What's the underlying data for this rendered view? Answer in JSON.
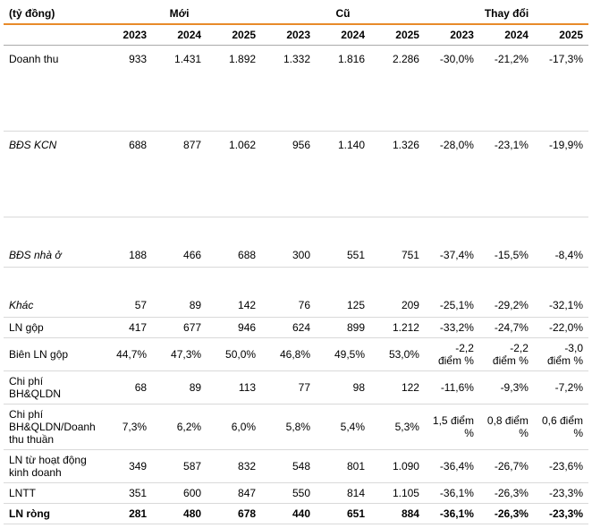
{
  "unit_label": "(tỷ đồng)",
  "groups": [
    "Mới",
    "Cũ",
    "Thay đổi"
  ],
  "years": [
    "2023",
    "2024",
    "2025",
    "2023",
    "2024",
    "2025",
    "2023",
    "2024",
    "2025"
  ],
  "rows": [
    {
      "label": "Doanh thu",
      "values": [
        "933",
        "1.431",
        "1.892",
        "1.332",
        "1.816",
        "2.286",
        "-30,0%",
        "-21,2%",
        "-17,3%"
      ],
      "tall": true
    },
    {
      "label": "BĐS KCN",
      "italic": true,
      "values": [
        "688",
        "877",
        "1.062",
        "956",
        "1.140",
        "1.326",
        "-28,0%",
        "-23,1%",
        "-19,9%"
      ],
      "tall": true
    },
    {
      "label": "BĐS nhà ở",
      "italic": true,
      "values": [
        "188",
        "466",
        "688",
        "300",
        "551",
        "751",
        "-37,4%",
        "-15,5%",
        "-8,4%"
      ],
      "medtall": true
    },
    {
      "label": "Khác",
      "italic": true,
      "values": [
        "57",
        "89",
        "142",
        "76",
        "125",
        "209",
        "-25,1%",
        "-29,2%",
        "-32,1%"
      ],
      "medtall": true
    },
    {
      "label": "LN gộp",
      "values": [
        "417",
        "677",
        "946",
        "624",
        "899",
        "1.212",
        "-33,2%",
        "-24,7%",
        "-22,0%"
      ]
    },
    {
      "label": "Biên LN gộp",
      "values": [
        "44,7%",
        "47,3%",
        "50,0%",
        "46,8%",
        "49,5%",
        "53,0%",
        "-2,2 điểm %",
        "-2,2 điểm %",
        "-3,0 điểm %"
      ]
    },
    {
      "label": "Chi phí BH&QLDN",
      "values": [
        "68",
        "89",
        "113",
        "77",
        "98",
        "122",
        "-11,6%",
        "-9,3%",
        "-7,2%"
      ]
    },
    {
      "label": "Chi phí BH&QLDN/Doanh thu thuần",
      "values": [
        "7,3%",
        "6,2%",
        "6,0%",
        "5,8%",
        "5,4%",
        "5,3%",
        "1,5 điểm %",
        "0,8 điểm %",
        "0,6 điểm %"
      ]
    },
    {
      "label": "LN từ hoạt động kinh doanh",
      "values": [
        "349",
        "587",
        "832",
        "548",
        "801",
        "1.090",
        "-36,4%",
        "-26,7%",
        "-23,6%"
      ]
    },
    {
      "label": "LNTT",
      "values": [
        "351",
        "600",
        "847",
        "550",
        "814",
        "1.105",
        "-36,1%",
        "-26,3%",
        "-23,3%"
      ]
    },
    {
      "label": "LN ròng",
      "bold": true,
      "values": [
        "281",
        "480",
        "678",
        "440",
        "651",
        "884",
        "-36,1%",
        "-26,3%",
        "-23,3%"
      ]
    }
  ]
}
